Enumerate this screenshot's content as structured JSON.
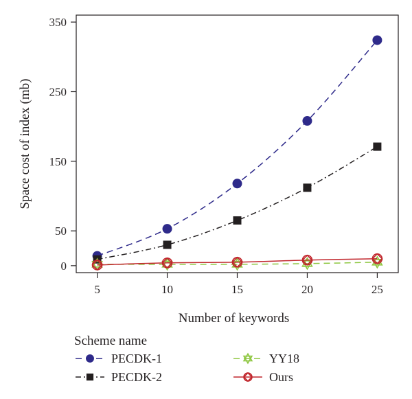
{
  "chart_data": {
    "type": "line",
    "xlabel": "Number of keywords",
    "ylabel": "Space cost of index (mb)",
    "x": [
      5,
      10,
      15,
      20,
      25
    ],
    "xlim": [
      3.5,
      26.5
    ],
    "ylim": [
      -10,
      360
    ],
    "xticks": [
      5,
      10,
      15,
      20,
      25
    ],
    "yticks": [
      0,
      50,
      150,
      250,
      350
    ],
    "grid": false,
    "legend": {
      "title": "Scheme name",
      "position": "bottom"
    },
    "series": [
      {
        "name": "PECDK-1",
        "values": [
          14,
          53,
          118,
          208,
          324
        ],
        "color": "#2e2a8a",
        "line_style": "dashed",
        "marker": "circle"
      },
      {
        "name": "PECDK-2",
        "values": [
          9,
          30,
          65,
          112,
          171
        ],
        "color": "#231f20",
        "line_style": "dash-dot",
        "marker": "square"
      },
      {
        "name": "YY18",
        "values": [
          2,
          2,
          2,
          3,
          5
        ],
        "color": "#8dc63f",
        "line_style": "dashed",
        "marker": "star-of-david"
      },
      {
        "name": "Ours",
        "values": [
          1,
          4,
          5,
          8,
          10
        ],
        "color": "#c1272d",
        "line_style": "solid",
        "marker": "circled-diamond"
      }
    ]
  }
}
